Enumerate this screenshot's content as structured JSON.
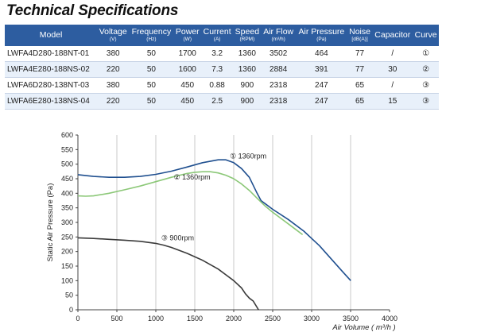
{
  "title": "Technical Specifications",
  "table": {
    "headers": [
      {
        "main": "Model",
        "unit": ""
      },
      {
        "main": "Voltage",
        "unit": "(V)"
      },
      {
        "main": "Frequency",
        "unit": "(Hz)"
      },
      {
        "main": "Power",
        "unit": "(W)"
      },
      {
        "main": "Current",
        "unit": "(A)"
      },
      {
        "main": "Speed",
        "unit": "(RPM)"
      },
      {
        "main": "Air Flow",
        "unit": "(m³/h)"
      },
      {
        "main": "Air Pressure",
        "unit": "(Pa)"
      },
      {
        "main": "Noise",
        "unit": "[dB(A)]"
      },
      {
        "main": "Capacitor",
        "unit": ""
      },
      {
        "main": "Curve",
        "unit": ""
      }
    ],
    "rows": [
      [
        "LWFA4D280-188NT-01",
        "380",
        "50",
        "1700",
        "3.2",
        "1360",
        "3502",
        "464",
        "77",
        "/",
        "①"
      ],
      [
        "LWFA4E280-188NS-02",
        "220",
        "50",
        "1600",
        "7.3",
        "1360",
        "2884",
        "391",
        "77",
        "30",
        "②"
      ],
      [
        "LWFA6D280-138NT-03",
        "380",
        "50",
        "450",
        "0.88",
        "900",
        "2318",
        "247",
        "65",
        "/",
        "③"
      ],
      [
        "LWFA6E280-138NS-04",
        "220",
        "50",
        "450",
        "2.5",
        "900",
        "2318",
        "247",
        "65",
        "15",
        "③"
      ]
    ]
  },
  "chart_data": {
    "type": "line",
    "xlabel": "Air Volume ( m³/h )",
    "ylabel": "Static Air Pressure  (Pa)",
    "xlim": [
      0,
      4000
    ],
    "ylim": [
      0,
      600
    ],
    "xticks": [
      0,
      500,
      1000,
      1500,
      2000,
      2500,
      3000,
      3500,
      4000
    ],
    "yticks": [
      0,
      50,
      100,
      150,
      200,
      250,
      300,
      350,
      400,
      450,
      500,
      550,
      600
    ],
    "vgrid_x": [
      500,
      1000,
      1500,
      2000,
      2500,
      3000,
      3500
    ],
    "series": [
      {
        "name": "① 1360rpm",
        "color": "#1f4f8f",
        "x": [
          0,
          200,
          400,
          600,
          800,
          1000,
          1200,
          1400,
          1600,
          1800,
          1900,
          2000,
          2100,
          2200,
          2300,
          2350,
          2400,
          2500,
          2700,
          2900,
          3000,
          3100,
          3200,
          3300,
          3400,
          3502
        ],
        "y": [
          464,
          458,
          455,
          455,
          458,
          465,
          476,
          490,
          505,
          515,
          515,
          505,
          485,
          455,
          400,
          375,
          365,
          345,
          310,
          270,
          245,
          220,
          190,
          160,
          130,
          100
        ]
      },
      {
        "name": "② 1360rpm",
        "color": "#8cc878",
        "x": [
          0,
          100,
          200,
          400,
          600,
          800,
          1000,
          1200,
          1400,
          1500,
          1600,
          1700,
          1800,
          1900,
          2000,
          2100,
          2200,
          2300,
          2400,
          2500,
          2600,
          2700,
          2800,
          2884
        ],
        "y": [
          391,
          390,
          391,
          400,
          412,
          425,
          440,
          455,
          468,
          472,
          474,
          474,
          470,
          462,
          450,
          432,
          410,
          383,
          357,
          335,
          315,
          295,
          275,
          258
        ]
      },
      {
        "name": "③ 900rpm",
        "color": "#3a3a3a",
        "x": [
          0,
          200,
          400,
          600,
          800,
          1000,
          1100,
          1200,
          1400,
          1600,
          1800,
          1900,
          2000,
          2100,
          2150,
          2200,
          2250,
          2318
        ],
        "y": [
          247,
          245,
          242,
          239,
          235,
          228,
          222,
          214,
          194,
          170,
          140,
          120,
          100,
          75,
          55,
          40,
          30,
          0
        ]
      }
    ],
    "annotations": [
      {
        "text": "① 1360rpm",
        "x": 1950,
        "y": 520
      },
      {
        "text": "② 1360rpm",
        "x": 1230,
        "y": 447
      },
      {
        "text": "③ 900rpm",
        "x": 1070,
        "y": 238
      }
    ]
  }
}
